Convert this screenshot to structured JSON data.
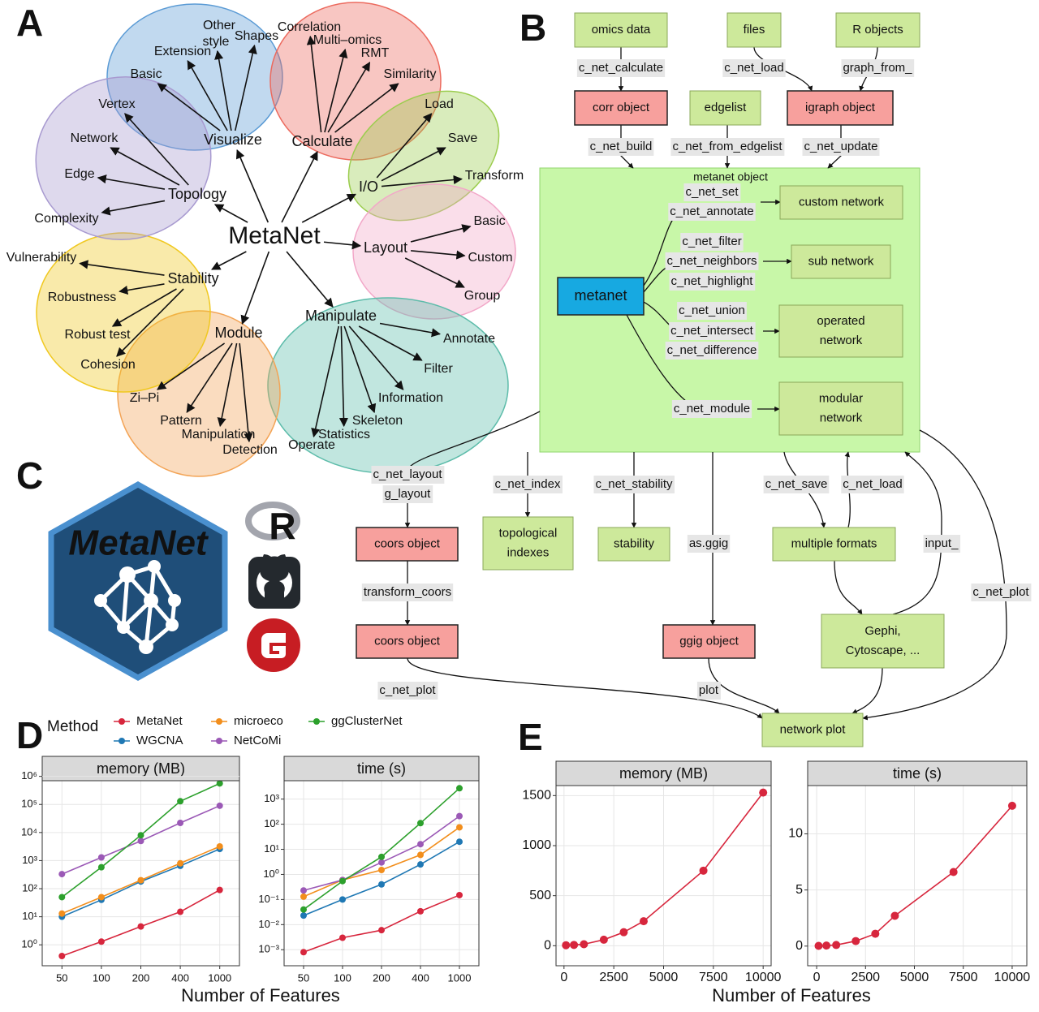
{
  "panel_labels": [
    "A",
    "B",
    "C",
    "D",
    "E"
  ],
  "panel_a": {
    "center": "MetaNet",
    "groups": [
      {
        "label": "Visualize",
        "color": "#5b9bd5",
        "items": [
          "Basic",
          "Extension",
          [
            "Other",
            "style"
          ],
          "Shapes"
        ]
      },
      {
        "label": "Calculate",
        "color": "#ec6a5e",
        "items": [
          "Correlation",
          "Multi–omics",
          "RMT",
          "Similarity"
        ]
      },
      {
        "label": "I/O",
        "color": "#9ccd4f",
        "items": [
          "Load",
          "Save",
          "Transform"
        ]
      },
      {
        "label": "Layout",
        "color": "#f2a7c8",
        "items": [
          "Basic",
          "Custom",
          "Group"
        ]
      },
      {
        "label": "Manipulate",
        "color": "#5dbcaa",
        "items": [
          "Annotate",
          "Filter",
          "Information",
          "Skeleton",
          "Statistics",
          "Operate"
        ]
      },
      {
        "label": "Module",
        "color": "#f3a456",
        "items": [
          "Zi–Pi",
          "Pattern",
          "Manipulation",
          "Detection"
        ]
      },
      {
        "label": "Stability",
        "color": "#f0c820",
        "items": [
          "Vulnerability",
          "Robustness",
          "Robust test",
          "Cohesion"
        ]
      },
      {
        "label": "Topology",
        "color": "#a89ad0",
        "items": [
          "Vertex",
          "Network",
          "Edge",
          "Complexity"
        ]
      }
    ]
  },
  "panel_b": {
    "container": {
      "label": "metanet object",
      "color": "#c8f7a8"
    },
    "nodes": [
      {
        "label": "omics data",
        "color": "#cde99b"
      },
      {
        "label": "files",
        "color": "#cde99b"
      },
      {
        "label": "R objects",
        "color": "#cde99b"
      },
      {
        "label": "corr object",
        "color": "#f7a09d"
      },
      {
        "label": "edgelist",
        "color": "#cde99b"
      },
      {
        "label": "igraph object",
        "color": "#f7a09d"
      },
      {
        "label": "metanet",
        "color": "#17a9e1"
      },
      {
        "label": "custom network",
        "color": "#cde99b"
      },
      {
        "label": "sub network",
        "color": "#cde99b"
      },
      {
        "label": [
          "operated",
          "network"
        ],
        "color": "#cde99b"
      },
      {
        "label": [
          "modular",
          "network"
        ],
        "color": "#cde99b"
      },
      {
        "label": "coors object",
        "color": "#f7a09d"
      },
      {
        "label": [
          "topological",
          "indexes"
        ],
        "color": "#cde99b"
      },
      {
        "label": "stability",
        "color": "#cde99b"
      },
      {
        "label": "multiple formats",
        "color": "#cde99b"
      },
      {
        "label": "coors object",
        "color": "#f7a09d"
      },
      {
        "label": "ggig object",
        "color": "#f7a09d"
      },
      {
        "label": [
          "Gephi,",
          "Cytoscape, ..."
        ],
        "color": "#cde99b"
      },
      {
        "label": "network plot",
        "color": "#cde99b"
      }
    ],
    "edge_labels": [
      "c_net_calculate",
      "c_net_load",
      "graph_from_",
      "c_net_build",
      "c_net_from_edgelist",
      "c_net_update",
      "c_net_set",
      "c_net_annotate",
      "c_net_filter",
      "c_net_neighbors",
      "c_net_highlight",
      "c_net_union",
      "c_net_intersect",
      "c_net_difference",
      "c_net_module",
      "c_net_layout",
      "g_layout",
      "c_net_index",
      "c_net_stability",
      "as.ggig",
      "c_net_save",
      "c_net_load",
      "input_",
      "transform_coors",
      "c_net_plot",
      "c_net_plot",
      "plot"
    ]
  },
  "panel_c": {
    "logo_text": "MetaNet",
    "r_logo": "R"
  },
  "chart_data": [
    {
      "type": "line",
      "title": "memory (MB)",
      "legend_title": "Method",
      "xlabel": "Number of Features",
      "categories": [
        "50",
        "100",
        "200",
        "400",
        "1000"
      ],
      "log_y": true,
      "ylim": [
        0.18,
        700000
      ],
      "yticks": [
        {
          "value": 1,
          "label": "10⁰"
        },
        {
          "value": 10,
          "label": "10¹"
        },
        {
          "value": 100,
          "label": "10²"
        },
        {
          "value": 1000,
          "label": "10³"
        },
        {
          "value": 10000,
          "label": "10⁴"
        },
        {
          "value": 100000,
          "label": "10⁵"
        },
        {
          "value": 1000000,
          "label": "10⁶"
        }
      ],
      "series": [
        {
          "name": "MetaNet",
          "color": "#d7263d",
          "values": [
            0.4,
            1.3,
            4.5,
            15,
            90
          ]
        },
        {
          "name": "WGCNA",
          "color": "#1f78b4",
          "values": [
            10,
            40,
            180,
            650,
            2600
          ]
        },
        {
          "name": "microeco",
          "color": "#f28e1c",
          "values": [
            13,
            50,
            200,
            800,
            3200
          ]
        },
        {
          "name": "NetCoMi",
          "color": "#9b59b6",
          "values": [
            330,
            1300,
            5000,
            22000,
            90000
          ]
        },
        {
          "name": "ggClusterNet",
          "color": "#2ca02c",
          "values": [
            50,
            580,
            8000,
            130000,
            560000
          ]
        }
      ]
    },
    {
      "type": "line",
      "title": "time (s)",
      "categories": [
        "50",
        "100",
        "200",
        "400",
        "1000"
      ],
      "log_y": true,
      "ylim": [
        0.00023,
        5400
      ],
      "yticks": [
        {
          "value": 0.001,
          "label": "10⁻³"
        },
        {
          "value": 0.01,
          "label": "10⁻²"
        },
        {
          "value": 0.1,
          "label": "10⁻¹"
        },
        {
          "value": 1,
          "label": "10⁰"
        },
        {
          "value": 10,
          "label": "10¹"
        },
        {
          "value": 100,
          "label": "10²"
        },
        {
          "value": 1000,
          "label": "10³"
        }
      ],
      "series": [
        {
          "color": "#d7263d",
          "values": [
            0.0008,
            0.003,
            0.006,
            0.034,
            0.15
          ]
        },
        {
          "color": "#1f78b4",
          "values": [
            0.023,
            0.1,
            0.4,
            2.5,
            20
          ]
        },
        {
          "color": "#f28e1c",
          "values": [
            0.13,
            0.6,
            1.5,
            6,
            75
          ]
        },
        {
          "color": "#9b59b6",
          "values": [
            0.23,
            0.6,
            3,
            16,
            210
          ]
        },
        {
          "color": "#2ca02c",
          "values": [
            0.04,
            0.54,
            5,
            110,
            2700
          ]
        }
      ]
    },
    {
      "type": "line",
      "title": "memory (MB)",
      "xlabel": "Number of Features",
      "x": [
        100,
        500,
        1000,
        2000,
        3000,
        4000,
        7000,
        10000
      ],
      "xlim": [
        -400,
        10400
      ],
      "xticks": [
        0,
        2500,
        5000,
        7500,
        10000
      ],
      "ylim": [
        -200,
        1600
      ],
      "yticks": [
        0,
        500,
        1000,
        1500
      ],
      "color": "#d7263d",
      "values": [
        5,
        8,
        15,
        60,
        135,
        245,
        750,
        1530
      ]
    },
    {
      "type": "line",
      "title": "time (s)",
      "x": [
        100,
        500,
        1000,
        2000,
        3000,
        4000,
        7000,
        10000
      ],
      "xlim": [
        -460,
        10750
      ],
      "xticks": [
        0,
        2500,
        5000,
        7500,
        10000
      ],
      "ylim": [
        -1.75,
        14.3
      ],
      "yticks": [
        0,
        5,
        10
      ],
      "color": "#d7263d",
      "values": [
        0.02,
        0.05,
        0.1,
        0.45,
        1.1,
        2.7,
        6.6,
        12.5
      ]
    }
  ]
}
